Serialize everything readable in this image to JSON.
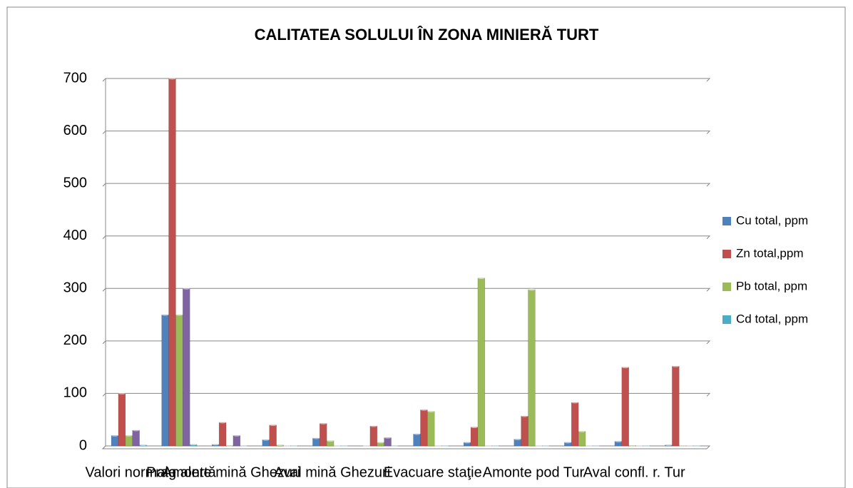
{
  "chart_data": {
    "type": "bar",
    "title": "CALITATEA SOLULUI ÎN ZONA MINIERĂ TURT",
    "categories": [
      "Valori normale",
      "Prag alertă",
      "Amonte mină Ghezuri",
      null,
      "Aval mină Ghezuri",
      null,
      "Evacuare staţie",
      null,
      "Amonte pod Tur",
      null,
      "Aval confl. r. Tur",
      null
    ],
    "series": [
      {
        "name": "Cu total, ppm",
        "color": "#4f81bd",
        "values": [
          20,
          250,
          3,
          12,
          15,
          0,
          23,
          7,
          13,
          7,
          9,
          2
        ]
      },
      {
        "name": "Zn total,ppm",
        "color": "#c0504d",
        "values": [
          100,
          700,
          45,
          40,
          43,
          38,
          69,
          36,
          57,
          83,
          150,
          152
        ]
      },
      {
        "name": "Pb total, ppm",
        "color": "#9bbb59",
        "values": [
          20,
          250,
          1,
          2,
          10,
          7,
          66,
          320,
          298,
          28,
          1,
          0.5
        ]
      },
      {
        "name": null,
        "color": "#8064a2",
        "values": [
          30,
          300,
          20,
          0,
          0,
          16,
          0,
          0,
          0,
          0,
          0,
          0
        ]
      },
      {
        "name": "Cd total, ppm",
        "color": "#4bacc6",
        "values": [
          2,
          3,
          0.5,
          0.5,
          0.5,
          0.5,
          0.5,
          0.5,
          0.5,
          0.5,
          0.5,
          0.5
        ]
      }
    ],
    "ylim": [
      0,
      700
    ],
    "yticks": [
      0,
      100,
      200,
      300,
      400,
      500,
      600,
      700
    ],
    "grid": true,
    "legend": "right"
  }
}
